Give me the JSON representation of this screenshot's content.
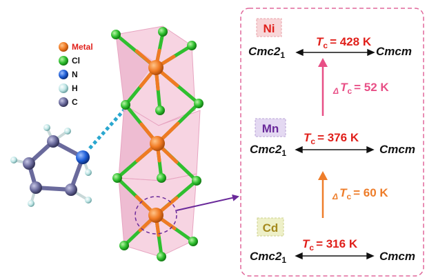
{
  "legend": {
    "items": [
      {
        "id": "metal",
        "label": "Metal",
        "color": "#f07a23",
        "text_color": "#e0201b"
      },
      {
        "id": "cl",
        "label": "Cl",
        "color": "#2fbf2f",
        "text_color": "#111111"
      },
      {
        "id": "n",
        "label": "N",
        "color": "#1f5fd8",
        "text_color": "#111111"
      },
      {
        "id": "h",
        "label": "H",
        "color": "#bfe6e6",
        "text_color": "#111111"
      },
      {
        "id": "c",
        "label": "C",
        "color": "#6a6a9c",
        "text_color": "#111111"
      }
    ]
  },
  "panel": {
    "border_color": "#e0679a",
    "sections": [
      {
        "id": "ni",
        "metal": "Ni",
        "badge_bg": "#f8d6d8",
        "badge_text_color": "#e0201b",
        "tc_symbol": "T",
        "tc_sub": "c",
        "tc_value": "= 428 K",
        "left_phase_main": "Cmc2",
        "left_phase_sub": "1",
        "right_phase": "Cmcm"
      },
      {
        "id": "mn",
        "metal": "Mn",
        "badge_bg": "#e4d9f2",
        "badge_text_color": "#6a2a9a",
        "tc_symbol": "T",
        "tc_sub": "c",
        "tc_value": "= 376 K",
        "left_phase_main": "Cmc2",
        "left_phase_sub": "1",
        "right_phase": "Cmcm"
      },
      {
        "id": "cd",
        "metal": "Cd",
        "badge_bg": "#eef0c8",
        "badge_text_color": "#a58a1f",
        "tc_symbol": "T",
        "tc_sub": "c",
        "tc_value": "= 316 K",
        "left_phase_main": "Cmc2",
        "left_phase_sub": "1",
        "right_phase": "Cmcm"
      }
    ],
    "deltas": [
      {
        "id": "ni-mn",
        "delta": "Δ",
        "symbol": "T",
        "sub": "c",
        "value": "= 52 K",
        "color": "#e84f86"
      },
      {
        "id": "mn-cd",
        "delta": "Δ",
        "symbol": "T",
        "sub": "c",
        "value": "= 60 K",
        "color": "#ee7d2a"
      }
    ],
    "tc_color": "#e0201b"
  },
  "colors": {
    "polyhedra": "#f4c6d8",
    "bond_metal": "#f07a23",
    "bond_cl": "#2fbf2f",
    "hbond": "#2aa7cf",
    "pointer_arrow": "#6a2a9a",
    "metal_highlight": "#6a2a9a"
  }
}
